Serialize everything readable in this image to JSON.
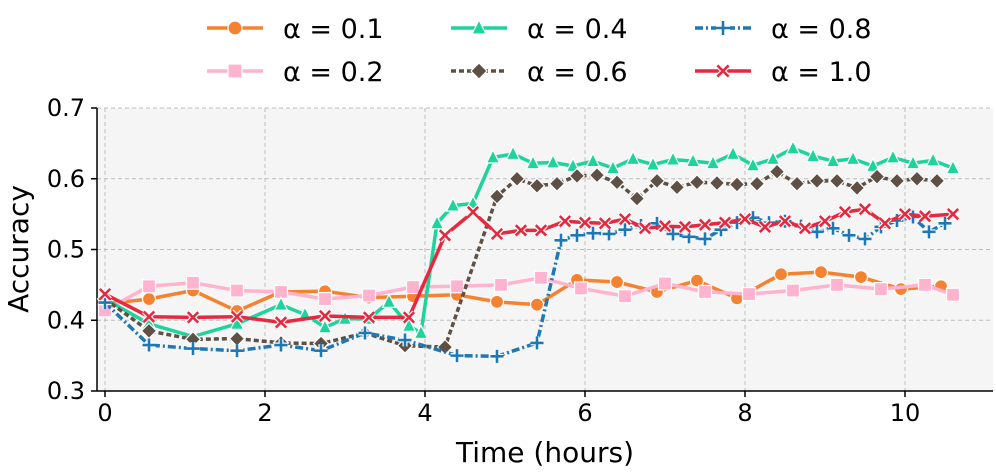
{
  "chart_data": {
    "type": "line",
    "xlabel": "Time (hours)",
    "ylabel": "Accuracy",
    "xlim": [
      -0.1,
      11.1
    ],
    "ylim": [
      0.3,
      0.7
    ],
    "xticks": [
      0,
      2,
      4,
      6,
      8,
      10
    ],
    "yticks": [
      0.3,
      0.4,
      0.5,
      0.6,
      0.7
    ],
    "xtick_labels": [
      "0",
      "2",
      "4",
      "6",
      "8",
      "10"
    ],
    "ytick_labels": [
      "0.3",
      "0.4",
      "0.5",
      "0.6",
      "0.7"
    ],
    "grid": true,
    "legend_position": "top",
    "series": [
      {
        "name": "α = 0.1",
        "color": "#F58231",
        "marker": "circle",
        "dash": "",
        "x": [
          0,
          0.55,
          1.1,
          1.65,
          2.2,
          2.75,
          3.3,
          3.85,
          4.4,
          4.9,
          5.4,
          5.9,
          6.4,
          6.9,
          7.4,
          7.9,
          8.45,
          8.95,
          9.45,
          9.95,
          10.45,
          10.6
        ],
        "y": [
          0.423,
          0.43,
          0.442,
          0.413,
          0.44,
          0.441,
          0.432,
          0.434,
          0.436,
          0.426,
          0.422,
          0.457,
          0.454,
          0.44,
          0.456,
          0.431,
          0.465,
          0.468,
          0.461,
          0.444,
          0.448,
          0.436
        ]
      },
      {
        "name": "α = 0.2",
        "color": "#FFB3CF",
        "marker": "square",
        "dash": "",
        "x": [
          0,
          0.55,
          1.1,
          1.65,
          2.2,
          2.75,
          3.3,
          3.85,
          4.4,
          4.95,
          5.45,
          5.95,
          6.5,
          7.0,
          7.5,
          8.05,
          8.6,
          9.15,
          9.7,
          10.25,
          10.6
        ],
        "y": [
          0.414,
          0.448,
          0.453,
          0.442,
          0.44,
          0.43,
          0.435,
          0.447,
          0.448,
          0.45,
          0.46,
          0.445,
          0.434,
          0.452,
          0.44,
          0.437,
          0.442,
          0.45,
          0.444,
          0.45,
          0.436
        ]
      },
      {
        "name": "α = 0.4",
        "color": "#1ED49B",
        "marker": "triangle",
        "dash": "",
        "x": [
          0,
          0.55,
          1.1,
          1.65,
          2.2,
          2.5,
          2.75,
          3.0,
          3.3,
          3.55,
          3.8,
          3.95,
          4.15,
          4.35,
          4.6,
          4.85,
          5.1,
          5.35,
          5.6,
          5.85,
          6.1,
          6.35,
          6.6,
          6.85,
          7.1,
          7.35,
          7.6,
          7.85,
          8.1,
          8.35,
          8.6,
          8.85,
          9.1,
          9.35,
          9.6,
          9.85,
          10.1,
          10.35,
          10.6
        ],
        "y": [
          0.43,
          0.395,
          0.377,
          0.395,
          0.422,
          0.408,
          0.39,
          0.402,
          0.402,
          0.426,
          0.392,
          0.382,
          0.537,
          0.562,
          0.565,
          0.63,
          0.635,
          0.622,
          0.623,
          0.618,
          0.625,
          0.615,
          0.628,
          0.62,
          0.627,
          0.625,
          0.622,
          0.635,
          0.619,
          0.628,
          0.643,
          0.632,
          0.625,
          0.628,
          0.618,
          0.63,
          0.622,
          0.626,
          0.615
        ]
      },
      {
        "name": "α = 0.6",
        "color": "#5E5044",
        "marker": "diamond",
        "dash": "5,3",
        "x": [
          0,
          0.55,
          1.1,
          1.65,
          2.2,
          2.7,
          3.25,
          3.75,
          4.25,
          4.9,
          5.15,
          5.4,
          5.65,
          5.9,
          6.15,
          6.4,
          6.65,
          6.9,
          7.15,
          7.4,
          7.65,
          7.9,
          8.15,
          8.4,
          8.65,
          8.9,
          9.15,
          9.4,
          9.65,
          9.9,
          10.15,
          10.4
        ],
        "y": [
          0.43,
          0.385,
          0.373,
          0.374,
          0.368,
          0.367,
          0.382,
          0.364,
          0.362,
          0.575,
          0.6,
          0.59,
          0.593,
          0.604,
          0.605,
          0.595,
          0.572,
          0.597,
          0.588,
          0.595,
          0.594,
          0.592,
          0.593,
          0.61,
          0.593,
          0.597,
          0.597,
          0.587,
          0.603,
          0.597,
          0.6,
          0.597
        ]
      },
      {
        "name": "α = 0.8",
        "color": "#1F77B4",
        "marker": "plus",
        "dash": "8,3,2,3",
        "x": [
          0,
          0.55,
          1.1,
          1.65,
          2.2,
          2.7,
          3.25,
          3.75,
          4.4,
          4.9,
          5.4,
          5.7,
          5.9,
          6.1,
          6.3,
          6.5,
          6.7,
          6.9,
          7.1,
          7.3,
          7.5,
          7.7,
          7.9,
          8.1,
          8.3,
          8.5,
          8.7,
          8.9,
          9.1,
          9.3,
          9.5,
          9.7,
          9.9,
          10.1,
          10.3,
          10.5
        ],
        "y": [
          0.425,
          0.365,
          0.36,
          0.357,
          0.365,
          0.357,
          0.382,
          0.372,
          0.35,
          0.349,
          0.368,
          0.513,
          0.52,
          0.523,
          0.522,
          0.528,
          0.534,
          0.537,
          0.522,
          0.518,
          0.515,
          0.528,
          0.538,
          0.545,
          0.538,
          0.54,
          0.533,
          0.525,
          0.53,
          0.52,
          0.515,
          0.532,
          0.541,
          0.546,
          0.525,
          0.537
        ]
      },
      {
        "name": "α = 1.0",
        "color": "#E6293F",
        "marker": "x",
        "dash": "",
        "x": [
          0,
          0.55,
          1.1,
          1.65,
          2.2,
          2.75,
          3.3,
          3.8,
          4.25,
          4.6,
          4.9,
          5.2,
          5.45,
          5.75,
          6.0,
          6.25,
          6.5,
          6.75,
          7.0,
          7.25,
          7.5,
          7.75,
          8.0,
          8.25,
          8.5,
          8.75,
          9.0,
          9.25,
          9.5,
          9.75,
          10.0,
          10.25,
          10.6
        ],
        "y": [
          0.437,
          0.405,
          0.404,
          0.405,
          0.397,
          0.406,
          0.404,
          0.404,
          0.52,
          0.553,
          0.522,
          0.527,
          0.527,
          0.54,
          0.538,
          0.537,
          0.543,
          0.53,
          0.533,
          0.532,
          0.535,
          0.538,
          0.543,
          0.532,
          0.54,
          0.53,
          0.54,
          0.553,
          0.557,
          0.537,
          0.55,
          0.547,
          0.55
        ]
      }
    ]
  }
}
